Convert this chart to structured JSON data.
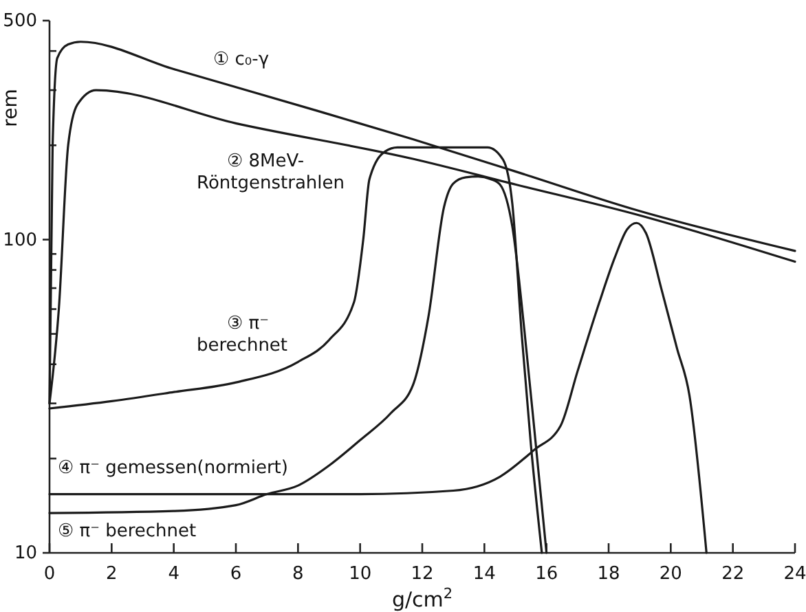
{
  "chart_data": {
    "type": "line",
    "xlabel": "g/cm$^{2}$",
    "ylabel": "rem",
    "log": "y",
    "xlim": [
      0,
      24
    ],
    "ylim": [
      10,
      500
    ],
    "xticks": [
      0,
      2,
      4,
      6,
      8,
      10,
      12,
      14,
      16,
      18,
      20,
      22,
      24
    ],
    "yticks": [
      10,
      {
        "value": 20,
        "label": null
      },
      {
        "value": 30,
        "label": null
      },
      {
        "value": 40,
        "label": null
      },
      {
        "value": 50,
        "label": null
      },
      {
        "value": 60,
        "label": null
      },
      {
        "value": 70,
        "label": null
      },
      {
        "value": 80,
        "label": null
      },
      {
        "value": 90,
        "label": null
      },
      100,
      {
        "value": 200,
        "label": null
      },
      {
        "value": 300,
        "label": null
      },
      {
        "value": 400,
        "label": null
      },
      500
    ],
    "grid": false,
    "legend": false,
    "marker": "none",
    "line_style": "solid",
    "series": [
      {
        "name": "① c₀-γ",
        "color": "#1a1a1a",
        "x": [
          0,
          0.1,
          0.25,
          0.6,
          1,
          4,
          8.6,
          11.7,
          15,
          18.8,
          24
        ],
        "values": [
          30,
          200,
          380,
          420,
          428,
          350,
          258,
          209,
          165,
          125,
          92
        ]
      },
      {
        "name": "② 8MeV- Röntgenstrahlen",
        "color": "#1a1a1a",
        "x": [
          0,
          0.3,
          0.6,
          0.9,
          1.5,
          6,
          11.7,
          15,
          18.8,
          24
        ],
        "values": [
          30,
          60,
          200,
          270,
          300,
          235,
          181,
          150,
          121,
          85
        ]
      },
      {
        "name": "③ π⁻ berechnet",
        "color": "#1a1a1a",
        "x": [
          0,
          2,
          4,
          6,
          8,
          9,
          9.8,
          10.1,
          10.3,
          10.8,
          11.2,
          14.1,
          14.6,
          14.9,
          15.2,
          15.5,
          15.85
        ],
        "values": [
          28.9,
          30.5,
          32.6,
          35,
          40.7,
          47.8,
          63,
          100,
          156,
          191,
          197,
          197,
          180,
          130,
          50,
          22,
          10
        ]
      },
      {
        "name": "④ π⁻ gemessen(normiert)",
        "color": "#1a1a1a",
        "x": [
          0,
          6,
          10,
          13,
          14.5,
          15.6,
          16.45,
          17,
          17.7,
          18.2,
          18.6,
          18.9,
          19.2,
          19.7,
          20.2,
          20.6,
          21.15
        ],
        "values": [
          15.4,
          15.4,
          15.4,
          15.8,
          17.5,
          21.3,
          25.4,
          38,
          63,
          87.7,
          108,
          113,
          105,
          69.5,
          45,
          31.9,
          10
        ]
      },
      {
        "name": "⑤ π⁻ berechnet",
        "color": "#1a1a1a",
        "x": [
          0,
          4,
          6,
          7,
          8,
          9,
          10,
          11,
          11.7,
          12.2,
          12.7,
          13,
          13.4,
          13.8,
          14.2,
          14.5,
          14.9,
          15.3,
          15.7,
          16
        ],
        "values": [
          13.4,
          13.6,
          14.2,
          15.4,
          16.4,
          19,
          22.9,
          28,
          34.3,
          56.8,
          127,
          151,
          158,
          159,
          156,
          150,
          110,
          50,
          20,
          10
        ]
      }
    ]
  }
}
